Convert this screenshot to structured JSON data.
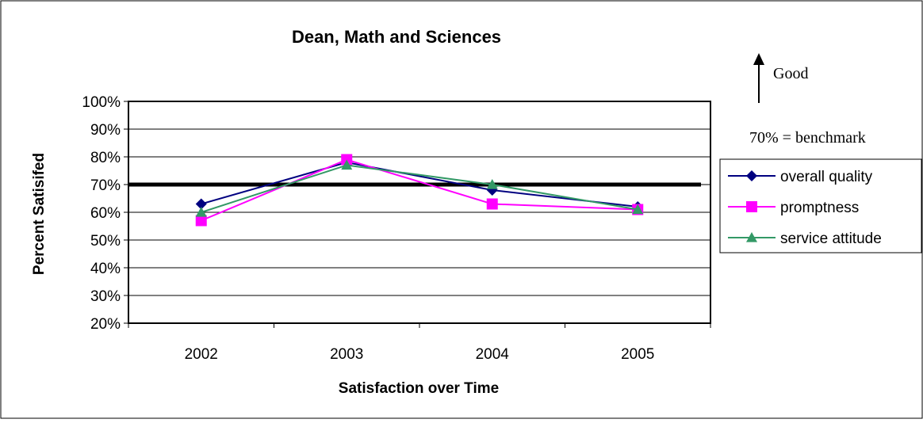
{
  "chart_data": {
    "type": "line",
    "title": "Dean, Math and Sciences",
    "xlabel": "Satisfaction over Time",
    "ylabel": "Percent Satisifed",
    "categories": [
      "2002",
      "2003",
      "2004",
      "2005"
    ],
    "ylim": [
      20,
      100
    ],
    "yticks": [
      "20%",
      "30%",
      "40%",
      "50%",
      "60%",
      "70%",
      "80%",
      "90%",
      "100%"
    ],
    "grid": true,
    "legend_position": "right",
    "benchmark": {
      "value": 70,
      "label": "70% = benchmark"
    },
    "annotation": {
      "label": "Good"
    },
    "series": [
      {
        "name": "overall quality",
        "values": [
          63,
          78,
          68,
          62
        ],
        "color": "#000080",
        "marker": "diamond"
      },
      {
        "name": "promptness",
        "values": [
          57,
          79,
          63,
          61
        ],
        "color": "#ff00ff",
        "marker": "square"
      },
      {
        "name": "service attitude",
        "values": [
          60,
          77,
          70,
          61
        ],
        "color": "#339966",
        "marker": "triangle"
      }
    ]
  }
}
